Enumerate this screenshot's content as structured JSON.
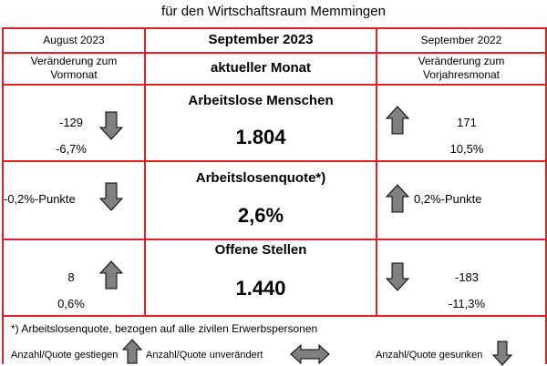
{
  "title": "für den Wirtschaftsraum Memmingen",
  "header": {
    "left_month": "August 2023",
    "center_month": "September 2023",
    "right_month": "September 2022",
    "left_sub_line1": "Veränderung zum",
    "left_sub_line2": "Vormonat",
    "center_sub": "aktueller Monat",
    "right_sub_line1": "Veränderung zum",
    "right_sub_line2": "Vorjahresmonat"
  },
  "rows": [
    {
      "label": "Arbeitslose Menschen",
      "value": "1.804",
      "left_abs": "-129",
      "left_pct": "-6,7%",
      "left_arrow": "down-arrow-icon",
      "right_abs": "171",
      "right_pct": "10,5%",
      "right_arrow": "up-arrow-icon"
    },
    {
      "label": "Arbeitslosenquote*)",
      "value": "2,6%",
      "left_text": "-0,2%-Punkte",
      "left_arrow": "down-arrow-icon",
      "right_text": "0,2%-Punkte",
      "right_arrow": "up-arrow-icon"
    },
    {
      "label": "Offene Stellen",
      "value": "1.440",
      "left_abs": "8",
      "left_pct": "0,6%",
      "left_arrow": "up-arrow-icon",
      "right_abs": "-183",
      "right_pct": "-11,3%",
      "right_arrow": "down-arrow-icon"
    }
  ],
  "footnote": "*) Arbeitslosenquote, bezogen auf alle zivilen Erwerbspersonen",
  "legend": {
    "up": "Anzahl/Quote gestiegen",
    "same": "Anzahl/Quote unverändert",
    "down": "Anzahl/Quote gesunken"
  },
  "colors": {
    "border": "#e31e24",
    "arrow_fill": "#808080"
  }
}
